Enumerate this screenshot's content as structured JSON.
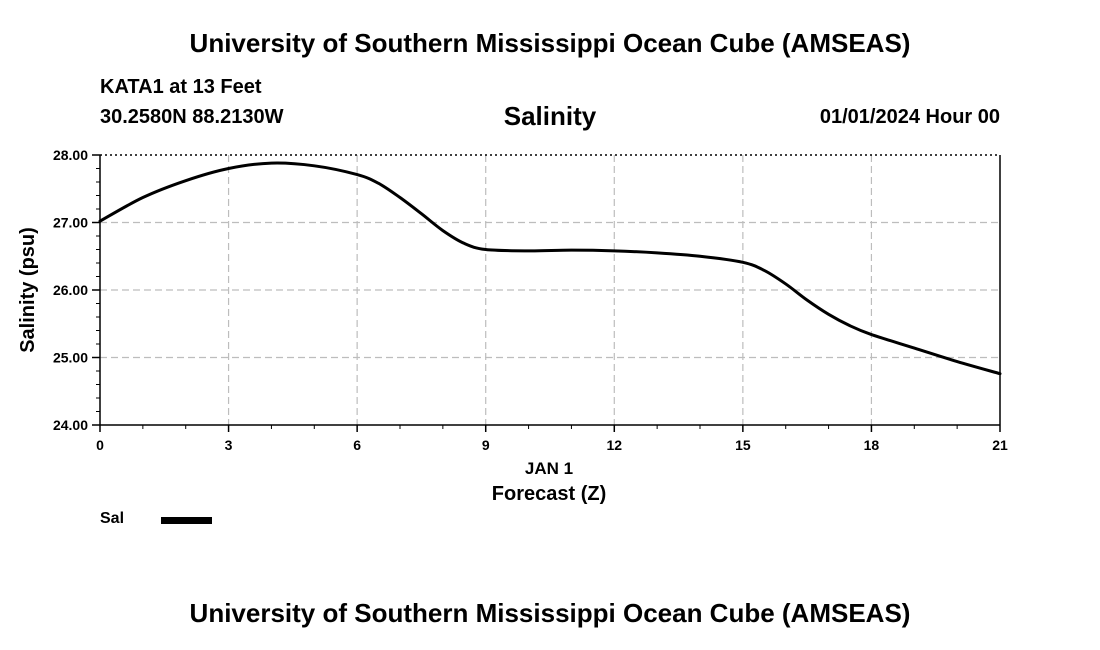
{
  "header": {
    "title": "University of Southern Mississippi Ocean Cube (AMSEAS)",
    "station": "KATA1 at 13 Feet",
    "coords": "30.2580N  88.2130W",
    "datetime": "01/01/2024 Hour 00"
  },
  "footer": {
    "title": "University of Southern Mississippi Ocean Cube (AMSEAS)"
  },
  "chart_data": {
    "type": "line",
    "title": "Salinity",
    "ylabel": "Salinity (psu)",
    "xlabel": "Forecast (Z)",
    "date_label": "JAN 1",
    "xlim": [
      0,
      21
    ],
    "ylim": [
      24,
      28
    ],
    "x_ticks": [
      "0",
      "3",
      "6",
      "9",
      "12",
      "15",
      "18",
      "21"
    ],
    "y_ticks": [
      "24.00",
      "25.00",
      "26.00",
      "27.00",
      "28.00"
    ],
    "grid": true,
    "legend_position": "bottom-left",
    "line_color": "#000000",
    "series": [
      {
        "name": "Sal",
        "x": [
          0,
          1,
          2,
          3,
          4,
          5,
          6,
          6.5,
          7,
          7.5,
          8,
          8.5,
          9,
          10,
          11,
          12,
          13,
          14,
          15,
          15.5,
          16,
          16.5,
          17,
          17.5,
          18,
          19,
          20,
          21
        ],
        "values": [
          27.02,
          27.37,
          27.62,
          27.8,
          27.88,
          27.84,
          27.71,
          27.58,
          27.37,
          27.13,
          26.88,
          26.69,
          26.6,
          26.58,
          26.59,
          26.58,
          26.55,
          26.5,
          26.41,
          26.29,
          26.09,
          25.85,
          25.64,
          25.47,
          25.34,
          25.14,
          24.94,
          24.76
        ]
      }
    ]
  }
}
